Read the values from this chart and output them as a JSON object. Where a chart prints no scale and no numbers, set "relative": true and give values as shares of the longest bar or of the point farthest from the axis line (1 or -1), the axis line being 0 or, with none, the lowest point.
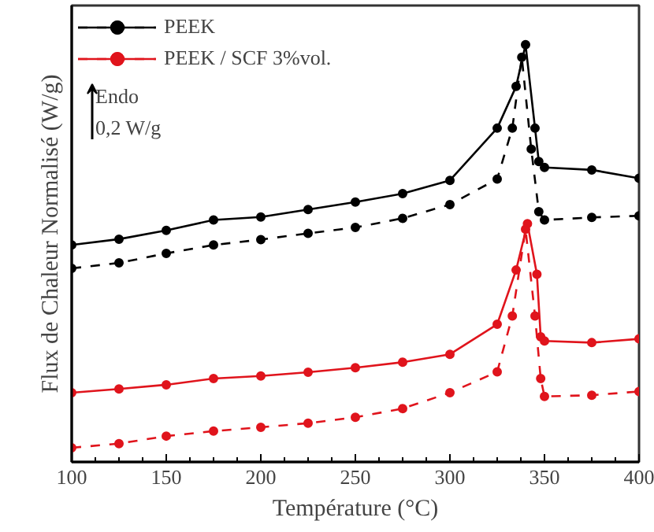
{
  "chart_data": {
    "type": "line",
    "relative": true,
    "xlabel": "Température (°C)",
    "ylabel": "Flux de Chaleur Normalisé (W/g)",
    "xlim": [
      100,
      400
    ],
    "xticks": [
      100,
      150,
      200,
      250,
      300,
      350,
      400
    ],
    "grid": false,
    "legend": "top left",
    "marker": "circle",
    "annotations": [
      "Endo",
      "0,2 W/g"
    ],
    "series": [
      {
        "name": "PEEK",
        "color": "#000000",
        "line_style": "solid",
        "x": [
          100,
          125,
          150,
          175,
          200,
          225,
          250,
          275,
          300,
          325,
          335,
          340,
          345,
          347,
          350,
          375,
          400
        ],
        "values": [
          0.52,
          0.534,
          0.555,
          0.58,
          0.587,
          0.605,
          0.623,
          0.643,
          0.675,
          0.8,
          0.9,
          1.0,
          0.8,
          0.72,
          0.706,
          0.7,
          0.68
        ]
      },
      {
        "color": "#000000",
        "line_style": "dashed",
        "x": [
          100,
          125,
          150,
          175,
          200,
          225,
          250,
          275,
          300,
          325,
          333,
          338,
          343,
          347,
          350,
          375,
          400
        ],
        "values": [
          0.464,
          0.477,
          0.5,
          0.52,
          0.533,
          0.548,
          0.562,
          0.584,
          0.617,
          0.678,
          0.8,
          0.97,
          0.75,
          0.6,
          0.58,
          0.586,
          0.59
        ]
      },
      {
        "name": "PEEK / SCF 3%vol.",
        "color": "#e0141c",
        "line_style": "solid",
        "x": [
          100,
          125,
          150,
          175,
          200,
          225,
          250,
          275,
          300,
          325,
          335,
          341,
          346,
          348,
          350,
          375,
          400
        ],
        "values": [
          0.166,
          0.175,
          0.185,
          0.2,
          0.206,
          0.215,
          0.226,
          0.239,
          0.258,
          0.33,
          0.46,
          0.571,
          0.45,
          0.3,
          0.29,
          0.286,
          0.295
        ]
      },
      {
        "color": "#e0141c",
        "line_style": "dashed",
        "x": [
          100,
          125,
          150,
          175,
          200,
          225,
          250,
          275,
          300,
          325,
          333,
          340,
          345,
          348,
          350,
          375,
          400
        ],
        "values": [
          0.034,
          0.044,
          0.062,
          0.074,
          0.083,
          0.093,
          0.107,
          0.128,
          0.166,
          0.216,
          0.35,
          0.558,
          0.35,
          0.2,
          0.157,
          0.16,
          0.169
        ]
      }
    ]
  }
}
